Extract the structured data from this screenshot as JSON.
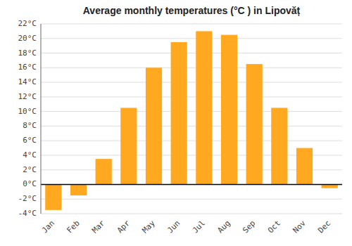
{
  "chart_data": {
    "type": "bar",
    "title": "Average monthly temperatures (°C ) in Lipovăț",
    "categories": [
      "Jan",
      "Feb",
      "Mar",
      "Apr",
      "May",
      "Jun",
      "Jul",
      "Aug",
      "Sep",
      "Oct",
      "Nov",
      "Dec"
    ],
    "values": [
      -3.5,
      -1.5,
      3.5,
      10.5,
      16.0,
      19.5,
      21.0,
      20.5,
      16.5,
      10.5,
      5.0,
      -0.5
    ],
    "color": "#FFA820",
    "ylim": [
      -4,
      22
    ],
    "yticks": [
      {
        "value": -4,
        "label": "-4°C"
      },
      {
        "value": -2,
        "label": "-2°C"
      },
      {
        "value": 0,
        "label": "0°C"
      },
      {
        "value": 2,
        "label": "2°C"
      },
      {
        "value": 4,
        "label": "4°C"
      },
      {
        "value": 6,
        "label": "6°C"
      },
      {
        "value": 8,
        "label": "8°C"
      },
      {
        "value": 10,
        "label": "10°C"
      },
      {
        "value": 12,
        "label": "12°C"
      },
      {
        "value": 14,
        "label": "14°C"
      },
      {
        "value": 16,
        "label": "16°C"
      },
      {
        "value": 18,
        "label": "18°C"
      },
      {
        "value": 20,
        "label": "20°C"
      },
      {
        "value": 22,
        "label": "22°C"
      }
    ],
    "grid": true
  }
}
